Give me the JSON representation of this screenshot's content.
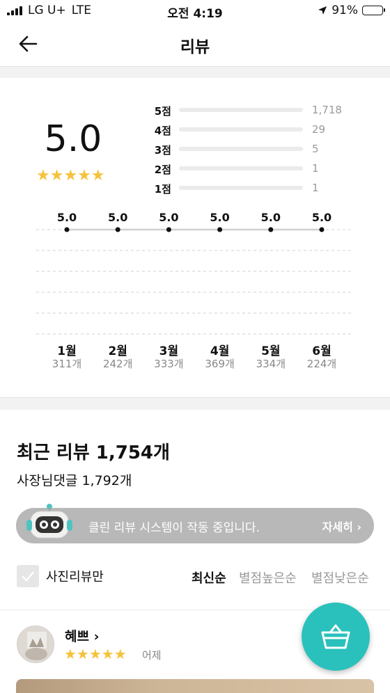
{
  "status_bar": {
    "carrier": "LG U+",
    "network": "LTE",
    "time": "오전 4:19",
    "battery": "91%",
    "battery_level": 0.91
  },
  "header": {
    "title": "리뷰"
  },
  "summary": {
    "average": "5.0",
    "stars": "★★★★★",
    "distribution": [
      {
        "label": "5점",
        "count": "1,718",
        "value": 1718
      },
      {
        "label": "4점",
        "count": "29",
        "value": 29
      },
      {
        "label": "3점",
        "count": "5",
        "value": 5
      },
      {
        "label": "2점",
        "count": "1",
        "value": 1
      },
      {
        "label": "1점",
        "count": "1",
        "value": 1
      }
    ]
  },
  "chart_data": {
    "type": "line",
    "categories": [
      "1월",
      "2월",
      "3월",
      "4월",
      "5월",
      "6월"
    ],
    "values": [
      5.0,
      5.0,
      5.0,
      5.0,
      5.0,
      5.0
    ],
    "value_labels": [
      "5.0",
      "5.0",
      "5.0",
      "5.0",
      "5.0",
      "5.0"
    ],
    "counts": [
      "311개",
      "242개",
      "333개",
      "369개",
      "334개",
      "224개"
    ],
    "ylim": [
      0,
      5
    ],
    "grid": true
  },
  "recent": {
    "title": "최근 리뷰 1,754개",
    "owner_replies": "사장님댓글 1,792개"
  },
  "clean_banner": {
    "message": "클린 리뷰 시스템이 작동 중입니다.",
    "more": "자세히"
  },
  "filters": {
    "photo_only": "사진리뷰만",
    "sorts": [
      "최신순",
      "별점높은순",
      "별점낮은순"
    ]
  },
  "review": {
    "name": "혜쁘",
    "stars": "★★★★★",
    "date": "어제"
  },
  "colors": {
    "accent": "#f5c23b",
    "fab": "#2ac1bc"
  }
}
